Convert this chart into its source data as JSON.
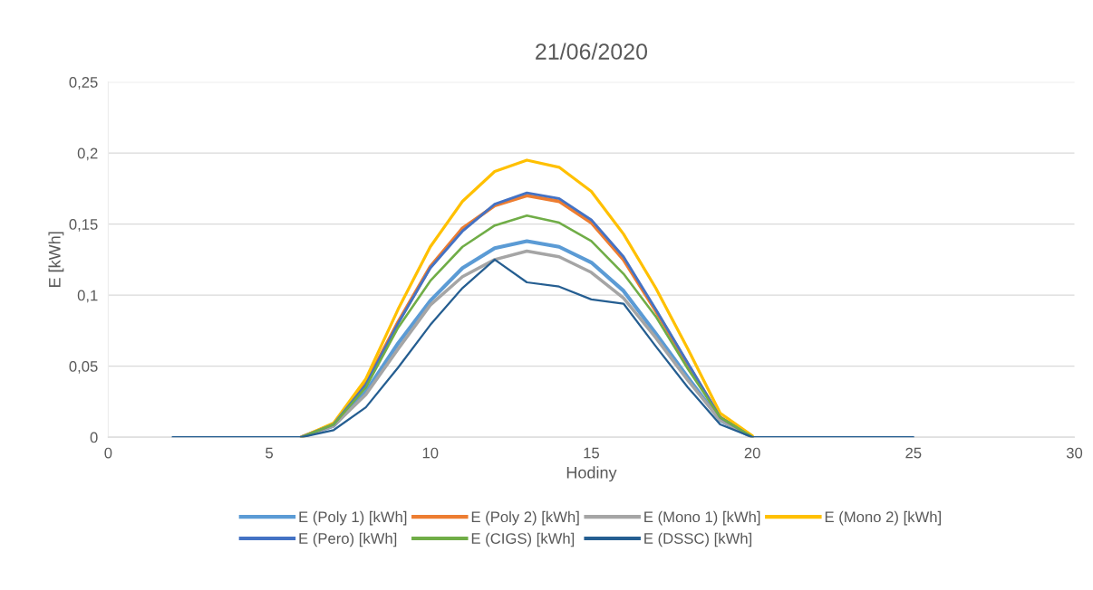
{
  "chart_data": {
    "type": "line",
    "title": "21/06/2020",
    "xlabel": "Hodiny",
    "ylabel": "E [kWh]",
    "x": [
      2,
      3,
      4,
      5,
      6,
      7,
      8,
      9,
      10,
      11,
      12,
      13,
      14,
      15,
      16,
      17,
      18,
      19,
      20,
      21,
      22,
      23,
      24,
      25
    ],
    "xlim": [
      0,
      30
    ],
    "xticks": [
      0,
      5,
      10,
      15,
      20,
      25,
      30
    ],
    "ylim": [
      0,
      0.25
    ],
    "yticks": [
      {
        "value": 0,
        "label": "0"
      },
      {
        "value": 0.05,
        "label": "0,05"
      },
      {
        "value": 0.1,
        "label": "0,1"
      },
      {
        "value": 0.15,
        "label": "0,15"
      },
      {
        "value": 0.2,
        "label": "0,2"
      },
      {
        "value": 0.25,
        "label": "0,25"
      }
    ],
    "grid": "y",
    "legend": "bottom",
    "marker": "none",
    "line_style": "solid",
    "series": [
      {
        "name": "E (Poly 1) [kWh]",
        "color": "#5b9bd5",
        "values": [
          null,
          null,
          null,
          null,
          0,
          0.008,
          0.032,
          0.066,
          0.096,
          0.119,
          0.133,
          0.138,
          0.134,
          0.123,
          0.103,
          0.073,
          0.042,
          0.012,
          0,
          null,
          null,
          null,
          null,
          null
        ]
      },
      {
        "name": "E (Poly 2) [kWh]",
        "color": "#ed7d31",
        "values": [
          null,
          null,
          null,
          null,
          0,
          0.009,
          0.038,
          0.081,
          0.12,
          0.147,
          0.163,
          0.17,
          0.166,
          0.151,
          0.125,
          0.089,
          0.051,
          0.014,
          0,
          null,
          null,
          null,
          null,
          null
        ]
      },
      {
        "name": "E (Mono 1) [kWh]",
        "color": "#a5a5a5",
        "values": [
          null,
          null,
          null,
          null,
          0,
          0.008,
          0.03,
          0.062,
          0.093,
          0.113,
          0.125,
          0.131,
          0.127,
          0.116,
          0.098,
          0.07,
          0.04,
          0.012,
          0,
          null,
          null,
          null,
          null,
          null
        ]
      },
      {
        "name": "E (Mono 2) [kWh]",
        "color": "#ffc000",
        "values": [
          null,
          null,
          null,
          null,
          0,
          0.01,
          0.041,
          0.09,
          0.134,
          0.166,
          0.187,
          0.195,
          0.19,
          0.173,
          0.143,
          0.105,
          0.062,
          0.017,
          0.001,
          null,
          null,
          null,
          null,
          null
        ]
      },
      {
        "name": "E (Pero) [kWh]",
        "color": "#4472c4",
        "values": [
          null,
          null,
          null,
          null,
          0,
          0.009,
          0.037,
          0.08,
          0.119,
          0.145,
          0.164,
          0.172,
          0.168,
          0.153,
          0.127,
          0.09,
          0.052,
          0.014,
          0,
          null,
          null,
          null,
          null,
          null
        ]
      },
      {
        "name": "E (CIGS) [kWh]",
        "color": "#70ad47",
        "values": [
          null,
          null,
          null,
          null,
          0,
          0.009,
          0.035,
          0.077,
          0.11,
          0.134,
          0.149,
          0.156,
          0.151,
          0.138,
          0.115,
          0.085,
          0.048,
          0.014,
          0,
          null,
          null,
          null,
          null,
          null
        ]
      },
      {
        "name": "E (DSSC) [kWh]",
        "color": "#255e91",
        "values": [
          0,
          0,
          0,
          0,
          0,
          0.005,
          0.021,
          0.049,
          0.079,
          0.105,
          0.125,
          0.109,
          0.106,
          0.097,
          0.094,
          0.064,
          0.035,
          0.009,
          0,
          0,
          0,
          0,
          0,
          0
        ]
      }
    ]
  }
}
